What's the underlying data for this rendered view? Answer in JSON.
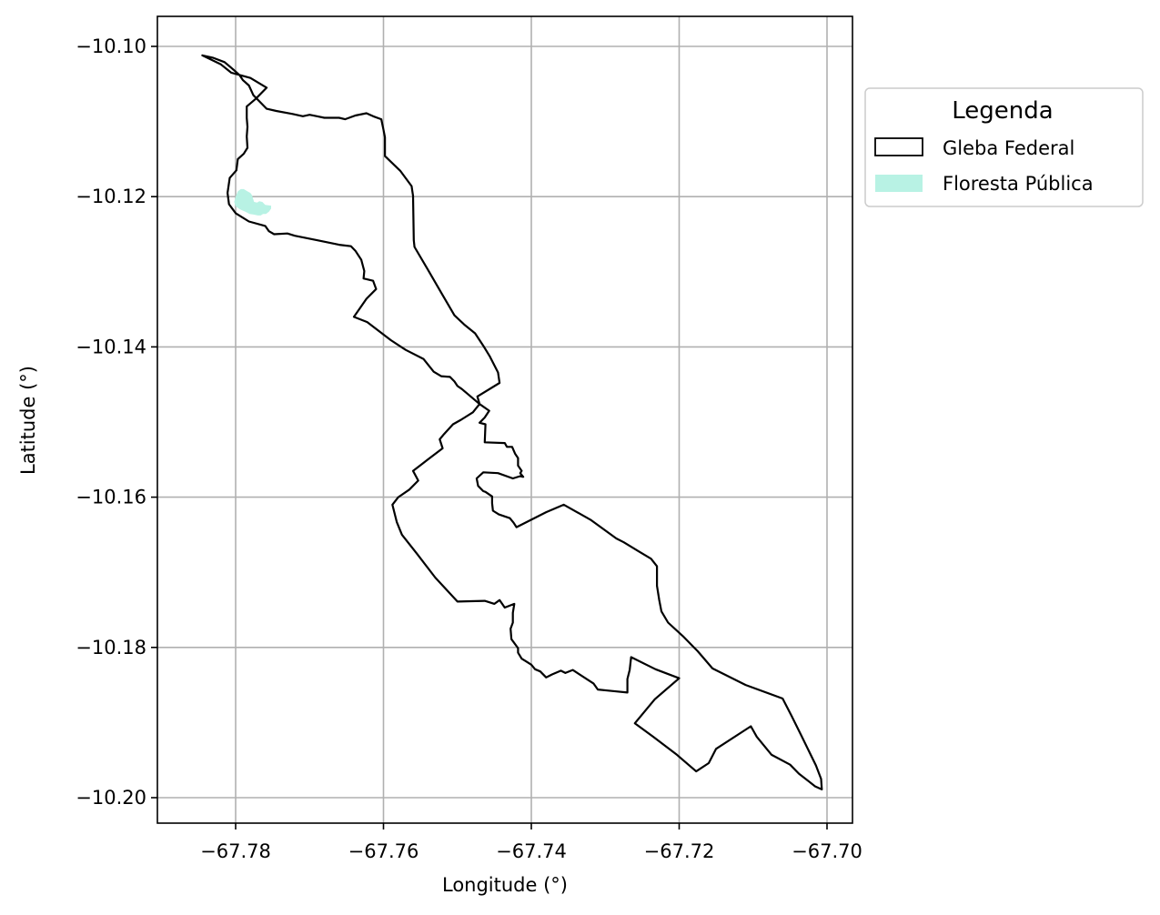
{
  "chart_data": {
    "type": "map",
    "xlabel": "Longitude (°)",
    "ylabel": "Latitude (°)",
    "xlim": [
      -67.7905,
      -67.7965
    ],
    "ylim": [
      -10.204,
      -10.096
    ],
    "xticks": [
      -67.78,
      -67.76,
      -67.74,
      -67.72,
      -67.7
    ],
    "xtick_labels": [
      "−67.78",
      "−67.76",
      "−67.74",
      "−67.72",
      "−67.70"
    ],
    "yticks": [
      -10.1,
      -10.12,
      -10.14,
      -10.16,
      -10.18,
      -10.2
    ],
    "ytick_labels": [
      "−10.10",
      "−10.12",
      "−10.14",
      "−10.16",
      "−10.18",
      "−10.20"
    ],
    "grid": true,
    "legend": {
      "title": "Legenda",
      "placement": "outside-upper-right",
      "entries": [
        {
          "label": "Gleba Federal",
          "style": "outline",
          "color": "#000000"
        },
        {
          "label": "Floresta Pública",
          "style": "fill",
          "color": "#b8f2e4"
        }
      ]
    },
    "colors": {
      "gleba": "#000000",
      "floresta": "#b8f2e4",
      "grid": "#b0b0b0"
    },
    "layers": [
      {
        "name": "Gleba Federal",
        "coordinates": [
          [
            -67.7845,
            -10.1012
          ],
          [
            -67.7831,
            -10.1015
          ],
          [
            -67.7815,
            -10.1021
          ],
          [
            -67.7803,
            -10.1031
          ],
          [
            -67.7795,
            -10.1038
          ],
          [
            -67.779,
            -10.1045
          ],
          [
            -67.7782,
            -10.1052
          ],
          [
            -67.7776,
            -10.1065
          ],
          [
            -67.7769,
            -10.1072
          ],
          [
            -67.7758,
            -10.1083
          ],
          [
            -67.7745,
            -10.1086
          ],
          [
            -67.7723,
            -10.109
          ],
          [
            -67.7709,
            -10.1093
          ],
          [
            -67.77,
            -10.1091
          ],
          [
            -67.769,
            -10.1093
          ],
          [
            -67.768,
            -10.1095
          ],
          [
            -67.766,
            -10.1095
          ],
          [
            -67.7652,
            -10.1097
          ],
          [
            -67.7638,
            -10.1092
          ],
          [
            -67.7623,
            -10.1089
          ],
          [
            -67.7614,
            -10.1093
          ],
          [
            -67.7603,
            -10.1097
          ],
          [
            -67.76,
            -10.1111
          ],
          [
            -67.7598,
            -10.1121
          ],
          [
            -67.7598,
            -10.1146
          ],
          [
            -67.7577,
            -10.1166
          ],
          [
            -67.7562,
            -10.1186
          ],
          [
            -67.756,
            -10.1199
          ],
          [
            -67.7559,
            -10.1258
          ],
          [
            -67.7558,
            -10.1267
          ],
          [
            -67.754,
            -10.1297
          ],
          [
            -67.752,
            -10.1331
          ],
          [
            -67.7504,
            -10.1358
          ],
          [
            -67.749,
            -10.1371
          ],
          [
            -67.7476,
            -10.1382
          ],
          [
            -67.7464,
            -10.14
          ],
          [
            -67.7456,
            -10.1413
          ],
          [
            -67.7445,
            -10.1434
          ],
          [
            -67.7443,
            -10.1448
          ],
          [
            -67.7473,
            -10.1466
          ],
          [
            -67.747,
            -10.1476
          ],
          [
            -67.7457,
            -10.1485
          ],
          [
            -67.7463,
            -10.1494
          ],
          [
            -67.747,
            -10.1501
          ],
          [
            -67.7462,
            -10.1503
          ],
          [
            -67.7463,
            -10.1527
          ],
          [
            -67.7436,
            -10.1528
          ],
          [
            -67.7433,
            -10.1533
          ],
          [
            -67.7426,
            -10.1533
          ],
          [
            -67.7422,
            -10.1542
          ],
          [
            -67.7418,
            -10.1548
          ],
          [
            -67.7418,
            -10.1558
          ],
          [
            -67.7413,
            -10.1565
          ],
          [
            -67.7415,
            -10.1568
          ],
          [
            -67.7411,
            -10.1573
          ],
          [
            -67.7415,
            -10.1572
          ],
          [
            -67.7425,
            -10.1575
          ],
          [
            -67.7445,
            -10.1568
          ],
          [
            -67.7465,
            -10.1567
          ],
          [
            -67.7474,
            -10.1575
          ],
          [
            -67.7472,
            -10.1585
          ],
          [
            -67.7465,
            -10.1592
          ],
          [
            -67.7462,
            -10.1593
          ],
          [
            -67.7453,
            -10.1599
          ],
          [
            -67.7453,
            -10.1608
          ],
          [
            -67.7452,
            -10.1618
          ],
          [
            -67.7444,
            -10.1623
          ],
          [
            -67.7429,
            -10.1628
          ],
          [
            -67.7424,
            -10.1634
          ],
          [
            -67.742,
            -10.164
          ],
          [
            -67.74,
            -10.163
          ],
          [
            -67.738,
            -10.162
          ],
          [
            -67.7356,
            -10.161
          ],
          [
            -67.732,
            -10.163
          ],
          [
            -67.7285,
            -10.1655
          ],
          [
            -67.7275,
            -10.166
          ],
          [
            -67.7255,
            -10.1672
          ],
          [
            -67.7238,
            -10.1682
          ],
          [
            -67.723,
            -10.1692
          ],
          [
            -67.723,
            -10.1718
          ],
          [
            -67.7227,
            -10.1737
          ],
          [
            -67.7224,
            -10.1752
          ],
          [
            -67.7215,
            -10.1767
          ],
          [
            -67.7195,
            -10.1785
          ],
          [
            -67.7175,
            -10.1805
          ],
          [
            -67.7155,
            -10.1828
          ],
          [
            -67.711,
            -10.185
          ],
          [
            -67.706,
            -10.1868
          ],
          [
            -67.7048,
            -10.1891
          ],
          [
            -67.7035,
            -10.1917
          ],
          [
            -67.7015,
            -10.1957
          ],
          [
            -67.7008,
            -10.1975
          ],
          [
            -67.7007,
            -10.1989
          ],
          [
            -67.7016,
            -10.1985
          ],
          [
            -67.7038,
            -10.1968
          ],
          [
            -67.705,
            -10.1956
          ],
          [
            -67.7075,
            -10.1943
          ],
          [
            -67.7095,
            -10.1919
          ],
          [
            -67.7103,
            -10.1905
          ],
          [
            -67.715,
            -10.1935
          ],
          [
            -67.716,
            -10.1954
          ],
          [
            -67.7177,
            -10.1965
          ],
          [
            -67.7203,
            -10.1943
          ],
          [
            -67.7235,
            -10.1919
          ],
          [
            -67.726,
            -10.1901
          ],
          [
            -67.7233,
            -10.1869
          ],
          [
            -67.72,
            -10.1841
          ],
          [
            -67.7232,
            -10.1829
          ],
          [
            -67.7265,
            -10.1813
          ],
          [
            -67.7267,
            -10.183
          ],
          [
            -67.727,
            -10.1842
          ],
          [
            -67.727,
            -10.186
          ],
          [
            -67.7291,
            -10.1858
          ],
          [
            -67.731,
            -10.1856
          ],
          [
            -67.7316,
            -10.1848
          ],
          [
            -67.7344,
            -10.183
          ],
          [
            -67.7354,
            -10.1834
          ],
          [
            -67.736,
            -10.1831
          ],
          [
            -67.7372,
            -10.1836
          ],
          [
            -67.738,
            -10.184
          ],
          [
            -67.7388,
            -10.1832
          ],
          [
            -67.7395,
            -10.1829
          ],
          [
            -67.74,
            -10.1823
          ],
          [
            -67.7408,
            -10.1818
          ],
          [
            -67.7413,
            -10.1815
          ],
          [
            -67.7418,
            -10.1807
          ],
          [
            -67.7418,
            -10.1801
          ],
          [
            -67.7427,
            -10.1789
          ],
          [
            -67.7428,
            -10.1775
          ],
          [
            -67.7425,
            -10.1767
          ],
          [
            -67.7425,
            -10.1754
          ],
          [
            -67.7423,
            -10.1742
          ],
          [
            -67.7436,
            -10.1747
          ],
          [
            -67.7443,
            -10.1737
          ],
          [
            -67.745,
            -10.1742
          ],
          [
            -67.7463,
            -10.1738
          ],
          [
            -67.75,
            -10.1739
          ],
          [
            -67.753,
            -10.1707
          ],
          [
            -67.7555,
            -10.1675
          ],
          [
            -67.7575,
            -10.165
          ],
          [
            -67.7582,
            -10.1633
          ],
          [
            -67.7588,
            -10.161
          ],
          [
            -67.758,
            -10.16
          ],
          [
            -67.7565,
            -10.159
          ],
          [
            -67.7553,
            -10.1578
          ],
          [
            -67.756,
            -10.1565
          ],
          [
            -67.754,
            -10.155
          ],
          [
            -67.752,
            -10.1535
          ],
          [
            -67.7524,
            -10.1523
          ],
          [
            -67.7518,
            -10.1516
          ],
          [
            -67.7506,
            -10.1503
          ],
          [
            -67.7495,
            -10.1497
          ],
          [
            -67.7479,
            -10.1487
          ],
          [
            -67.747,
            -10.1476
          ],
          [
            -67.7488,
            -10.1461
          ],
          [
            -67.7494,
            -10.1456
          ],
          [
            -67.75,
            -10.1452
          ],
          [
            -67.7504,
            -10.1446
          ],
          [
            -67.751,
            -10.144
          ],
          [
            -67.7522,
            -10.1439
          ],
          [
            -67.7532,
            -10.1433
          ],
          [
            -67.7546,
            -10.1416
          ],
          [
            -67.757,
            -10.1404
          ],
          [
            -67.759,
            -10.1391
          ],
          [
            -67.7622,
            -10.1367
          ],
          [
            -67.764,
            -10.136
          ],
          [
            -67.7623,
            -10.1336
          ],
          [
            -67.761,
            -10.1323
          ],
          [
            -67.7614,
            -10.1312
          ],
          [
            -67.7627,
            -10.1309
          ],
          [
            -67.7626,
            -10.1299
          ],
          [
            -67.763,
            -10.1284
          ],
          [
            -67.7638,
            -10.1272
          ],
          [
            -67.7644,
            -10.1266
          ],
          [
            -67.766,
            -10.1264
          ],
          [
            -67.769,
            -10.1258
          ],
          [
            -67.772,
            -10.1252
          ],
          [
            -67.773,
            -10.1249
          ],
          [
            -67.7748,
            -10.125
          ],
          [
            -67.7755,
            -10.1246
          ],
          [
            -67.776,
            -10.1239
          ],
          [
            -67.7782,
            -10.1233
          ],
          [
            -67.78,
            -10.1222
          ],
          [
            -67.7809,
            -10.121
          ],
          [
            -67.7811,
            -10.1195
          ],
          [
            -67.7808,
            -10.1175
          ],
          [
            -67.7799,
            -10.1165
          ],
          [
            -67.7797,
            -10.115
          ],
          [
            -67.7789,
            -10.1143
          ],
          [
            -67.7784,
            -10.1135
          ],
          [
            -67.7785,
            -10.112
          ],
          [
            -67.7784,
            -10.1107
          ],
          [
            -67.7785,
            -10.1095
          ],
          [
            -67.7785,
            -10.108
          ],
          [
            -67.7773,
            -10.107
          ],
          [
            -67.7758,
            -10.1055
          ],
          [
            -67.778,
            -10.1042
          ],
          [
            -67.7806,
            -10.1035
          ],
          [
            -67.782,
            -10.1024
          ],
          [
            -67.7845,
            -10.1012
          ]
        ]
      },
      {
        "name": "Floresta Pública",
        "coordinates": [
          [
            -67.78,
            -10.12
          ],
          [
            -67.7797,
            -10.1193
          ],
          [
            -67.7793,
            -10.119
          ],
          [
            -67.7789,
            -10.119
          ],
          [
            -67.7784,
            -10.1193
          ],
          [
            -67.778,
            -10.1195
          ],
          [
            -67.7778,
            -10.1198
          ],
          [
            -67.7776,
            -10.1204
          ],
          [
            -67.7775,
            -10.1207
          ],
          [
            -67.7771,
            -10.1208
          ],
          [
            -67.7768,
            -10.1206
          ],
          [
            -67.7764,
            -10.1207
          ],
          [
            -67.776,
            -10.1211
          ],
          [
            -67.7752,
            -10.1212
          ],
          [
            -67.7752,
            -10.1216
          ],
          [
            -67.7755,
            -10.122
          ],
          [
            -67.7759,
            -10.1223
          ],
          [
            -67.7763,
            -10.1223
          ],
          [
            -67.7766,
            -10.1225
          ],
          [
            -67.777,
            -10.1225
          ],
          [
            -67.7775,
            -10.1224
          ],
          [
            -67.7781,
            -10.1223
          ],
          [
            -67.7787,
            -10.122
          ],
          [
            -67.7794,
            -10.1217
          ],
          [
            -67.78,
            -10.1213
          ],
          [
            -67.7802,
            -10.1207
          ],
          [
            -67.78,
            -10.12
          ]
        ]
      }
    ]
  }
}
